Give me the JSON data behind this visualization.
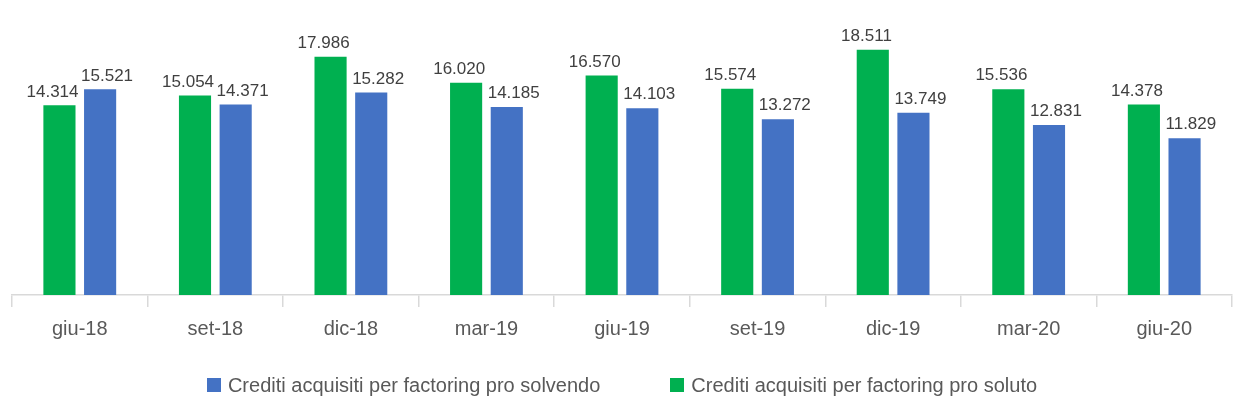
{
  "chart_data": {
    "type": "bar",
    "categories": [
      "giu-18",
      "set-18",
      "dic-18",
      "mar-19",
      "giu-19",
      "set-19",
      "dic-19",
      "mar-20",
      "giu-20"
    ],
    "series": [
      {
        "name": "Crediti acquisiti per factoring pro soluto",
        "color": "#00b050",
        "values": [
          14.314,
          15.054,
          17.986,
          16.02,
          16.57,
          15.574,
          18.511,
          15.536,
          14.378
        ],
        "value_labels": [
          "14.314",
          "15.054",
          "17.986",
          "16.020",
          "16.570",
          "15.574",
          "18.511",
          "15.536",
          "14.378"
        ]
      },
      {
        "name": "Crediti acquisiti per factoring pro solvendo",
        "color": "#4472c4",
        "values": [
          15.521,
          14.371,
          15.282,
          14.185,
          14.103,
          13.272,
          13.749,
          12.831,
          11.829
        ],
        "value_labels": [
          "15.521",
          "14.371",
          "15.282",
          "14.185",
          "14.103",
          "13.272",
          "13.749",
          "12.831",
          "11.829"
        ]
      }
    ],
    "grid": false,
    "legend": "bottom"
  }
}
